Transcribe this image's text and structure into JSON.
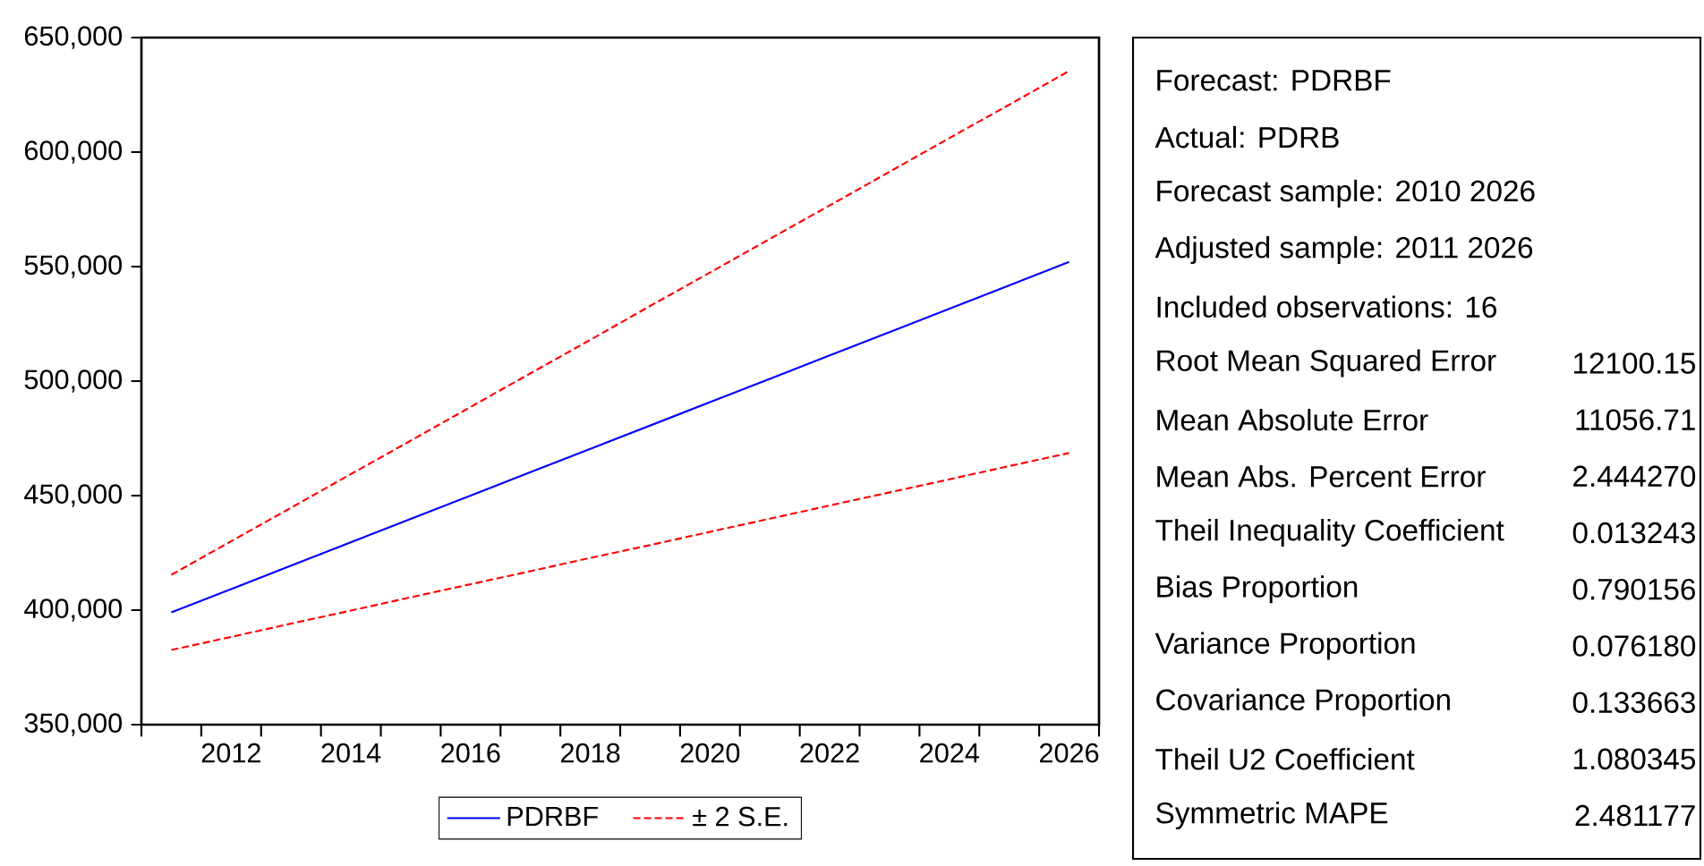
{
  "chart_data": [
    {
      "type": "line",
      "x": [
        2011,
        2012,
        2013,
        2014,
        2015,
        2016,
        2017,
        2018,
        2019,
        2020,
        2021,
        2022,
        2023,
        2024,
        2025,
        2026
      ],
      "series": [
        {
          "name": "PDRBF",
          "color": "#0000ff",
          "line_style": "solid",
          "values": [
            399000,
            409200,
            419400,
            429600,
            439800,
            450000,
            460200,
            470400,
            480600,
            490800,
            501000,
            511200,
            521400,
            531600,
            541800,
            552000
          ]
        },
        {
          "name": "± 2 S.E.",
          "color": "#ff0000",
          "line_style": "dashed",
          "values": [
            415400,
            430100,
            444700,
            459400,
            474000,
            488700,
            503400,
            518000,
            532800,
            547400,
            562100,
            576700,
            591400,
            606100,
            620700,
            635400
          ]
        },
        {
          "color": "#ff0000",
          "line_style": "dashed",
          "values": [
            382600,
            388300,
            394100,
            399800,
            405600,
            411300,
            417000,
            422800,
            428400,
            434200,
            439900,
            445700,
            451400,
            457100,
            462900,
            468600
          ]
        }
      ],
      "xlim": [
        2010.5,
        2026.5
      ],
      "xticks": [
        {
          "value": 2010.5,
          "label": null
        },
        {
          "value": 2011.5,
          "label": null
        },
        2012,
        {
          "value": 2012.5,
          "label": null
        },
        {
          "value": 2013.5,
          "label": null
        },
        2014,
        {
          "value": 2014.5,
          "label": null
        },
        {
          "value": 2015.5,
          "label": null
        },
        2016,
        {
          "value": 2016.5,
          "label": null
        },
        {
          "value": 2017.5,
          "label": null
        },
        2018,
        {
          "value": 2018.5,
          "label": null
        },
        {
          "value": 2019.5,
          "label": null
        },
        2020,
        {
          "value": 2020.5,
          "label": null
        },
        {
          "value": 2021.5,
          "label": null
        },
        2022,
        {
          "value": 2022.5,
          "label": null
        },
        {
          "value": 2023.5,
          "label": null
        },
        2024,
        {
          "value": 2024.5,
          "label": null
        },
        {
          "value": 2025.5,
          "label": null
        },
        2026,
        {
          "value": 2026.5,
          "label": null
        }
      ],
      "ylim": [
        350000,
        650000
      ],
      "yticks": [
        {
          "value": 350000,
          "label": "350,000"
        },
        {
          "value": 400000,
          "label": "400,000"
        },
        {
          "value": 450000,
          "label": "450,000"
        },
        {
          "value": 500000,
          "label": "500,000"
        },
        {
          "value": 550000,
          "label": "550,000"
        },
        {
          "value": 600000,
          "label": "600,000"
        },
        {
          "value": 650000,
          "label": "650,000"
        }
      ],
      "grid": false,
      "legend": "bottom",
      "marker": "none"
    },
    {
      "type": "other",
      "annotations": [
        "Forecast: PDRBF",
        "Actual: PDRB",
        "Forecast sample: 2010 2026",
        "Adjusted sample: 2011 2026",
        "Included observations: 16"
      ],
      "categories": [
        "Root Mean Squared Error",
        "Mean Absolute Error",
        "Mean Abs. Percent Error",
        "Theil Inequality Coefficient",
        "Bias Proportion",
        "Variance Proportion",
        "Covariance Proportion",
        "Theil U2 Coefficient",
        "Symmetric MAPE"
      ],
      "value_labels": [
        "12100.15",
        "11056.71",
        "2.444270",
        "0.013243",
        "0.790156",
        "0.076180",
        "0.133663",
        "1.080345",
        "2.481177"
      ]
    }
  ]
}
